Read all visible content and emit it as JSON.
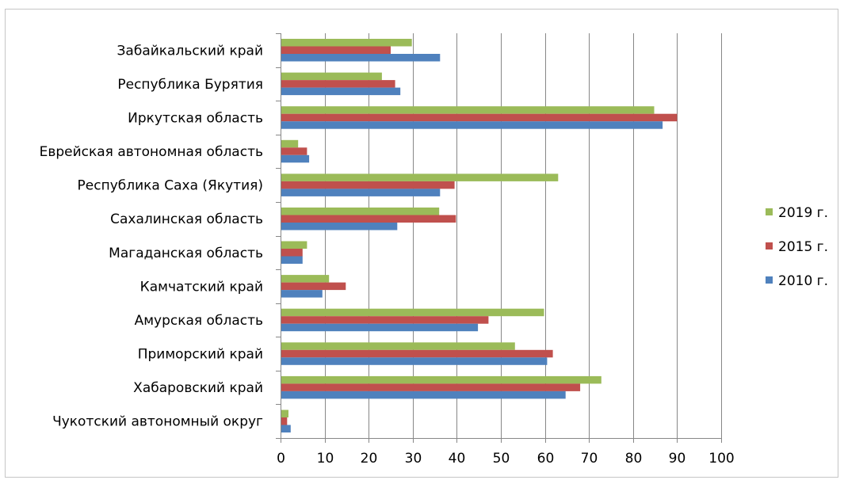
{
  "chart_data": {
    "type": "bar",
    "orientation": "horizontal",
    "categories": [
      "Забайкальский край",
      "Республика Бурятия",
      "Иркутская область",
      "Еврейская автономная область",
      "Республика Саха (Якутия)",
      "Сахалинская область",
      "Магаданская область",
      "Камчатский край",
      "Амурская область",
      "Приморский край",
      "Хабаровский край",
      "Чукотский  автономный округ"
    ],
    "series": [
      {
        "name": "2019 г.",
        "color": "#9bbb59",
        "values": [
          29.8,
          23,
          84.8,
          4,
          63,
          36,
          6,
          11,
          59.8,
          53.2,
          72.8,
          1.8
        ]
      },
      {
        "name": "2015 г.",
        "color": "#c0504d",
        "values": [
          25,
          26,
          90,
          6,
          39.5,
          39.8,
          5,
          14.8,
          47.2,
          61.8,
          68,
          1.5
        ]
      },
      {
        "name": "2010 г.",
        "color": "#4f81bd",
        "values": [
          36.2,
          27.2,
          86.7,
          6.5,
          36.2,
          26.5,
          5,
          9.5,
          44.8,
          60.5,
          64.7,
          2.3
        ]
      }
    ],
    "xlim": [
      0,
      100
    ],
    "xticks": [
      "0",
      "10",
      "20",
      "30",
      "40",
      "50",
      "60",
      "70",
      "80",
      "90",
      "100"
    ],
    "title": "",
    "xlabel": "",
    "ylabel": "",
    "grid": "vertical",
    "legend_position": "right"
  }
}
